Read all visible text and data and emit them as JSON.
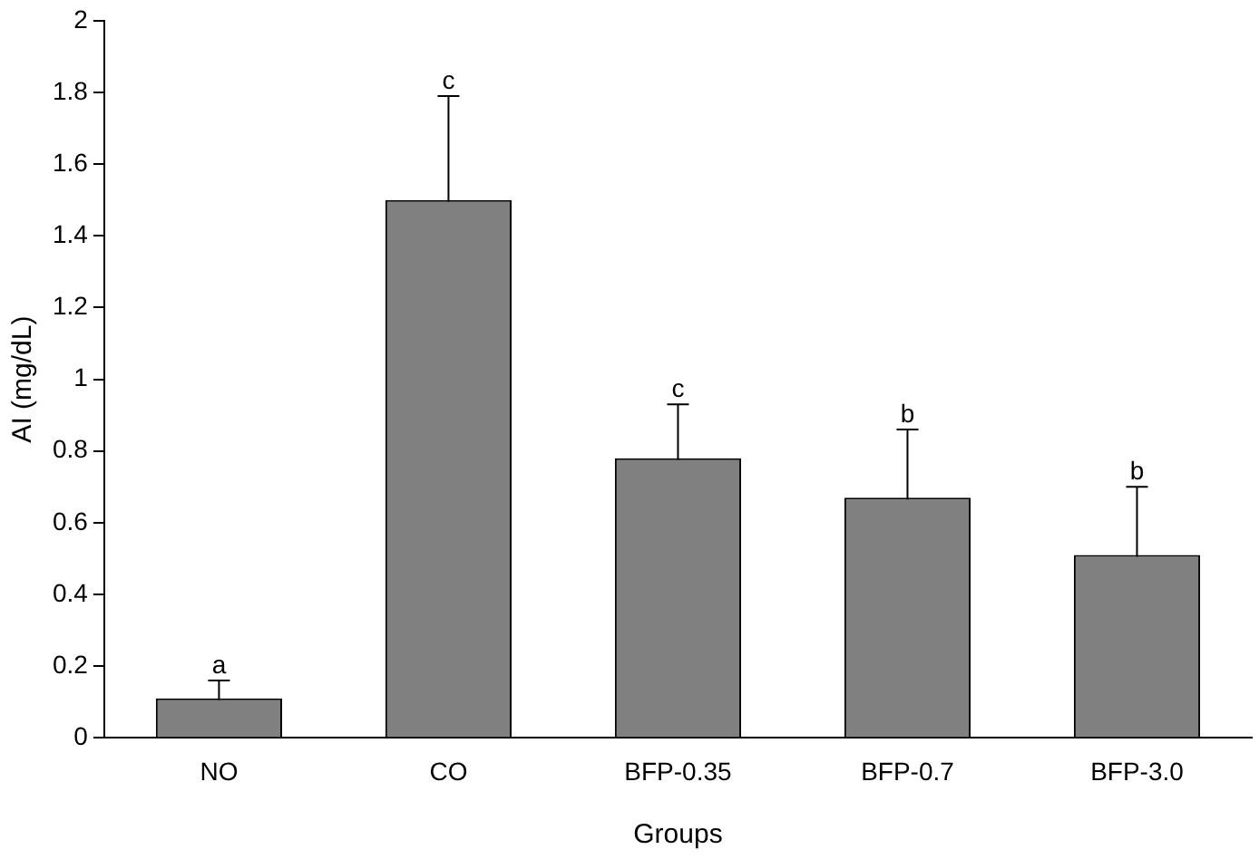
{
  "chart_data": {
    "type": "bar",
    "xlabel": "Groups",
    "ylabel": "AI (mg/dL)",
    "categories": [
      "NO",
      "CO",
      "BFP-0.35",
      "BFP-0.7",
      "BFP-3.0"
    ],
    "values": [
      0.11,
      1.5,
      0.78,
      0.67,
      0.51
    ],
    "errors": [
      0.05,
      0.29,
      0.15,
      0.19,
      0.19
    ],
    "color": "#808080",
    "ylim": [
      0,
      2
    ],
    "yticks": [
      0,
      0.2,
      0.4,
      0.6,
      0.8,
      1,
      1.2,
      1.4,
      1.6,
      1.8,
      2
    ],
    "grid": false,
    "legend": false,
    "annotations": [
      {
        "text": "a",
        "x": "NO",
        "y": 0.16
      },
      {
        "text": "c",
        "x": "CO",
        "y": 1.79
      },
      {
        "text": "c",
        "x": "BFP-0.35",
        "y": 0.93
      },
      {
        "text": "b",
        "x": "BFP-0.7",
        "y": 0.86
      },
      {
        "text": "b",
        "x": "BFP-3.0",
        "y": 0.7
      }
    ]
  }
}
